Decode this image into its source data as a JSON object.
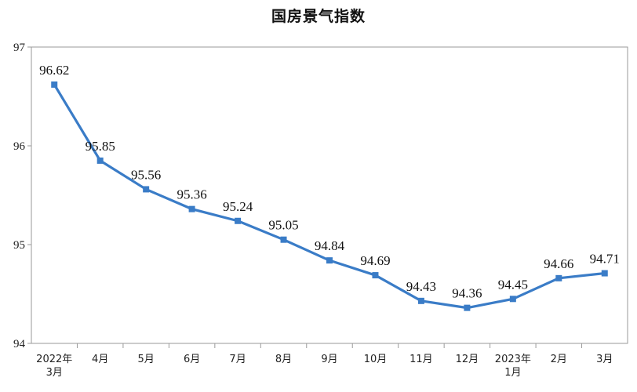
{
  "chart_data": {
    "type": "line",
    "title": "国房景气指数",
    "xlabel": "",
    "ylabel": "",
    "ylim": [
      94,
      97
    ],
    "yticks": [
      "94",
      "95",
      "96",
      "97"
    ],
    "categories": [
      [
        "2022年",
        "3月"
      ],
      [
        "4月"
      ],
      [
        "5月"
      ],
      [
        "6月"
      ],
      [
        "7月"
      ],
      [
        "8月"
      ],
      [
        "9月"
      ],
      [
        "10月"
      ],
      [
        "11月"
      ],
      [
        "12月"
      ],
      [
        "2023年",
        "1月"
      ],
      [
        "2月"
      ],
      [
        "3月"
      ]
    ],
    "series": [
      {
        "values": [
          96.62,
          95.85,
          95.56,
          95.36,
          95.24,
          95.05,
          94.84,
          94.69,
          94.43,
          94.36,
          94.45,
          94.66,
          94.71
        ],
        "labels": [
          "96.62",
          "95.85",
          "95.56",
          "95.36",
          "95.24",
          "95.05",
          "94.84",
          "94.69",
          "94.43",
          "94.36",
          "94.45",
          "94.66",
          "94.71"
        ],
        "color": "#3a7cc7"
      }
    ],
    "grid": false
  }
}
